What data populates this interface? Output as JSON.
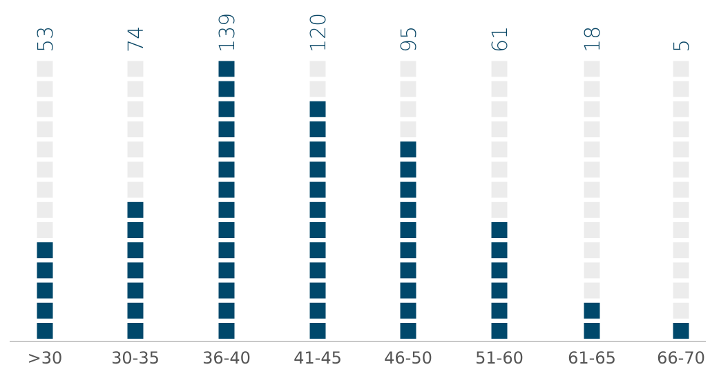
{
  "chart_data": {
    "type": "bar",
    "style": "unit-square column chart",
    "categories": [
      ">30",
      "30-35",
      "36-40",
      "41-45",
      "46-50",
      "51-60",
      "61-65",
      "66-70"
    ],
    "values": [
      53,
      74,
      139,
      120,
      95,
      61,
      18,
      5
    ],
    "value_labels": [
      "53",
      "74",
      "139",
      "120",
      "95",
      "61",
      "18",
      "5"
    ],
    "title": "",
    "xlabel": "",
    "ylabel": "",
    "ylim": [
      0,
      140
    ],
    "grid": false,
    "legend": "none",
    "colors": {
      "filled": "#00486b",
      "empty": "#ececec",
      "label": "#0a4766",
      "axis": "#c8c8c8",
      "tick": "#555555"
    }
  }
}
